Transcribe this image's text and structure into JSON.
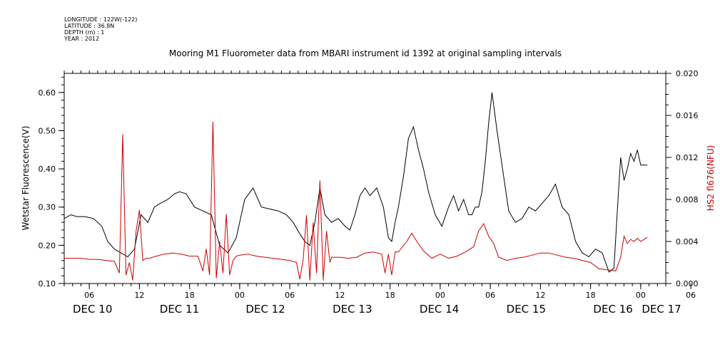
{
  "meta_lines": [
    "LONGITUDE : 122W(-122)",
    "LATITUDE : 36.8N",
    "DEPTH (m) : 1",
    "YEAR : 2012"
  ],
  "chart_data": {
    "type": "line",
    "title": "Mooring M1 Fluorometer data from MBARI instrument id 1392 at original sampling intervals",
    "x_unit": "hours since 2012-12-10 00:00",
    "xlim": [
      3,
      75
    ],
    "x_hour_ticks": [
      "06",
      "12",
      "18",
      "00",
      "06",
      "12",
      "18",
      "00",
      "06",
      "12",
      "18",
      "00",
      "06",
      "12",
      "18",
      "00",
      "06",
      "12",
      "18",
      "00",
      "06",
      "12",
      "18",
      "00",
      "06",
      "12",
      "18",
      "00"
    ],
    "x_day_labels": [
      {
        "label": "DEC 10",
        "x": 3
      },
      {
        "label": "DEC 11",
        "x": 13.4
      },
      {
        "label": "DEC 12",
        "x": 23.7
      },
      {
        "label": "DEC 13",
        "x": 34.1
      },
      {
        "label": "DEC 14",
        "x": 44.5
      },
      {
        "label": "DEC 15",
        "x": 54.9
      },
      {
        "label": "DEC 16",
        "x": 65.3
      },
      {
        "label": "DEC 17",
        "x": 71.1
      }
    ],
    "y_left": {
      "label": "Wetstar Fluorescence(V)",
      "lim": [
        0.1,
        0.65
      ],
      "ticks": [
        "0.10",
        "0.20",
        "0.30",
        "0.40",
        "0.50",
        "0.60"
      ],
      "color": "#000000"
    },
    "y_right": {
      "label": "HS2 fl676(NFU)",
      "lim": [
        0.0,
        0.02
      ],
      "ticks": [
        "0.000",
        "0.004",
        "0.008",
        "0.012",
        "0.016",
        "0.020"
      ],
      "color": "#cc0000"
    },
    "series": [
      {
        "axis": "left",
        "color": "#000000",
        "x": [
          3,
          3.8,
          4.5,
          5.5,
          6.5,
          7.5,
          8.2,
          9.0,
          9.8,
          10.6,
          11.4,
          12.2,
          13.0,
          13.8,
          14.5,
          15.4,
          16.2,
          16.8,
          17.6,
          18.6,
          19.6,
          20.6,
          21.6,
          22.6,
          23.6,
          24.6,
          25.6,
          26.6,
          27.6,
          28.6,
          29.6,
          30.4,
          31.2,
          31.8,
          32.4,
          33.0,
          33.6,
          34.2,
          35.0,
          35.8,
          36.6,
          37.2,
          37.8,
          38.4,
          39.0,
          39.6,
          40.4,
          41.2,
          41.8,
          42.2,
          42.6,
          43.0,
          43.6,
          44.2,
          44.8,
          45.4,
          46.0,
          46.6,
          47.4,
          48.2,
          49.0,
          49.6,
          50.2,
          50.8,
          51.4,
          51.8,
          52.2,
          52.6,
          53.0,
          53.4,
          53.8,
          54.2,
          54.8,
          55.4,
          56.2,
          57.0,
          57.8,
          58.6,
          59.4,
          60.2,
          61.0,
          61.8,
          62.6,
          63.4,
          64.2,
          65.0,
          65.8,
          66.6,
          67.4,
          68.2,
          68.8,
          69.2,
          69.6,
          70.0,
          70.4,
          70.8,
          71.2,
          71.6,
          72.0,
          72.4,
          72.8
        ],
        "y": [
          0.27,
          0.28,
          0.275,
          0.275,
          0.27,
          0.25,
          0.21,
          0.19,
          0.18,
          0.17,
          0.19,
          0.28,
          0.26,
          0.3,
          0.31,
          0.32,
          0.335,
          0.34,
          0.335,
          0.3,
          0.29,
          0.28,
          0.2,
          0.18,
          0.22,
          0.32,
          0.35,
          0.3,
          0.295,
          0.29,
          0.28,
          0.26,
          0.23,
          0.21,
          0.2,
          0.26,
          0.35,
          0.28,
          0.26,
          0.27,
          0.25,
          0.24,
          0.28,
          0.33,
          0.35,
          0.33,
          0.35,
          0.3,
          0.22,
          0.21,
          0.26,
          0.3,
          0.38,
          0.48,
          0.51,
          0.45,
          0.4,
          0.34,
          0.28,
          0.25,
          0.3,
          0.33,
          0.29,
          0.32,
          0.28,
          0.28,
          0.3,
          0.3,
          0.34,
          0.42,
          0.52,
          0.6,
          0.5,
          0.41,
          0.29,
          0.26,
          0.27,
          0.3,
          0.29,
          0.31,
          0.33,
          0.36,
          0.3,
          0.28,
          0.21,
          0.18,
          0.17,
          0.19,
          0.18,
          0.13,
          0.14,
          0.29,
          0.43,
          0.37,
          0.4,
          0.44,
          0.42,
          0.45,
          0.41,
          0.41,
          0.41
        ]
      },
      {
        "axis": "right",
        "color": "#cc0000",
        "x": [
          3,
          4,
          5,
          6,
          7,
          8,
          9,
          9.6,
          10.0,
          10.4,
          10.8,
          11.2,
          11.6,
          12.0,
          12.4,
          12.8,
          13.2,
          14,
          15,
          16,
          17,
          18,
          19,
          19.6,
          20.0,
          20.4,
          20.8,
          21.2,
          21.6,
          22.0,
          22.4,
          22.8,
          23.2,
          23.6,
          24,
          25,
          26,
          27,
          28,
          29,
          30,
          30.8,
          31.2,
          31.6,
          32.0,
          32.4,
          32.8,
          33.2,
          33.6,
          34.0,
          34.4,
          34.8,
          35,
          36,
          37,
          38,
          39,
          40,
          41,
          41.4,
          41.8,
          42.2,
          42.6,
          43,
          44,
          44.6,
          45.2,
          46,
          47,
          48,
          49,
          50,
          51,
          52,
          52.6,
          53.2,
          53.8,
          54.4,
          55,
          56,
          57,
          58,
          59,
          60,
          61,
          62,
          63,
          64,
          65,
          66,
          67,
          68,
          69,
          69.6,
          70,
          70.4,
          70.8,
          71.2,
          71.6,
          72,
          72.4,
          72.8
        ],
        "y": [
          0.0024,
          0.0024,
          0.0024,
          0.0023,
          0.0023,
          0.0022,
          0.0021,
          0.001,
          0.0142,
          0.0008,
          0.002,
          0.0003,
          0.005,
          0.007,
          0.0022,
          0.0024,
          0.0024,
          0.0026,
          0.0028,
          0.0029,
          0.0028,
          0.0026,
          0.0026,
          0.0012,
          0.0033,
          0.0008,
          0.0154,
          0.0005,
          0.004,
          0.001,
          0.0066,
          0.0008,
          0.0022,
          0.0026,
          0.0027,
          0.0028,
          0.0026,
          0.0025,
          0.0024,
          0.0023,
          0.0022,
          0.002,
          0.0004,
          0.0023,
          0.0065,
          0.0003,
          0.0058,
          0.001,
          0.0098,
          0.0003,
          0.005,
          0.002,
          0.0025,
          0.0025,
          0.0024,
          0.0025,
          0.0029,
          0.003,
          0.0028,
          0.001,
          0.0028,
          0.0008,
          0.003,
          0.003,
          0.004,
          0.0048,
          0.004,
          0.0031,
          0.0024,
          0.0028,
          0.0024,
          0.0026,
          0.003,
          0.0035,
          0.005,
          0.0057,
          0.0045,
          0.0038,
          0.0025,
          0.0022,
          0.0024,
          0.0025,
          0.0027,
          0.0029,
          0.0029,
          0.0027,
          0.0025,
          0.0024,
          0.0022,
          0.002,
          0.0014,
          0.0013,
          0.0012,
          0.0025,
          0.0045,
          0.0038,
          0.0042,
          0.004,
          0.0043,
          0.004,
          0.0042,
          0.0044
        ]
      }
    ]
  }
}
